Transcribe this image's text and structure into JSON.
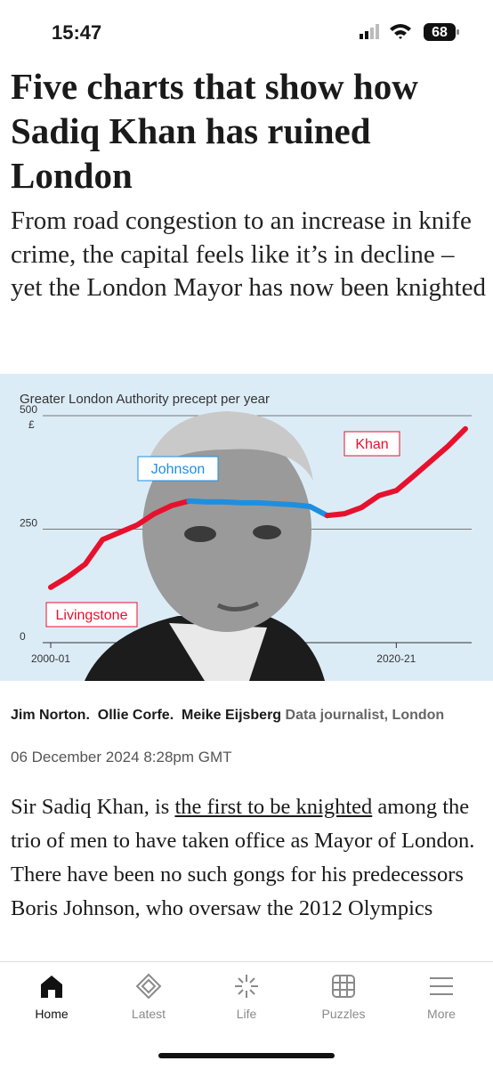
{
  "status_bar": {
    "time": "15:47",
    "battery": "68"
  },
  "article": {
    "headline": "Five charts that show how Sadiq Khan has ruined London",
    "standfirst": "From road congestion to an increase in knife crime, the capital feels like it’s in decline – yet the London Mayor has now been knighted",
    "byline": {
      "authors": [
        "Jim Norton.",
        "Ollie Corfe.",
        "Meike Eijsberg"
      ],
      "role": "Data journalist, London",
      "date": "06 December 2024 8:28pm GMT"
    },
    "body": {
      "before": "Sir Sadiq Khan, is ",
      "link": "the first to be knighted",
      "after": " among the trio of men to have taken office as Mayor of London. There have been no such gongs for his predecessors Boris Johnson, who oversaw the 2012 Olympics"
    }
  },
  "chart_data": {
    "type": "line",
    "title": "Greater London Authority precept per year",
    "y_unit": "£",
    "categories": [
      "2000-01",
      null,
      null,
      null,
      null,
      null,
      null,
      null,
      null,
      null,
      null,
      null,
      null,
      null,
      null,
      null,
      null,
      null,
      null,
      null,
      "2020-21",
      null,
      null,
      null,
      null
    ],
    "series": [
      {
        "name": "Livingstone",
        "color": "#e8112d",
        "values": [
          122,
          145,
          173,
          227,
          243,
          259,
          284,
          302,
          312,
          null,
          null,
          null,
          null,
          null,
          null,
          null,
          null,
          null,
          null,
          null,
          null,
          null,
          null,
          null,
          null
        ]
      },
      {
        "name": "Johnson",
        "color": "#1e8fe0",
        "values": [
          null,
          null,
          null,
          null,
          null,
          null,
          null,
          null,
          312,
          310,
          310,
          308,
          308,
          306,
          304,
          300,
          280,
          null,
          null,
          null,
          null,
          null,
          null,
          null,
          null
        ]
      },
      {
        "name": "Khan",
        "color": "#e8112d",
        "values": [
          null,
          null,
          null,
          null,
          null,
          null,
          null,
          null,
          null,
          null,
          null,
          null,
          null,
          null,
          null,
          null,
          280,
          284,
          298,
          324,
          335,
          367,
          400,
          433,
          471
        ]
      }
    ],
    "ylim": [
      0,
      500
    ],
    "yticks": [
      0,
      250,
      500
    ],
    "grid": true
  },
  "nav": {
    "items": [
      "Home",
      "Latest",
      "Life",
      "Puzzles",
      "More"
    ]
  }
}
